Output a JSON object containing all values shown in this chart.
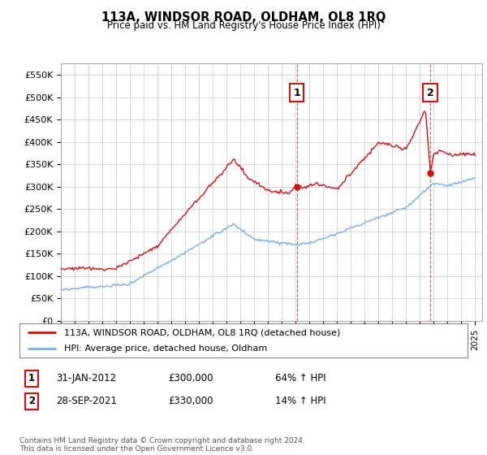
{
  "title": "113A, WINDSOR ROAD, OLDHAM, OL8 1RQ",
  "subtitle": "Price paid vs. HM Land Registry's House Price Index (HPI)",
  "ylim": [
    0,
    575000
  ],
  "yticks": [
    0,
    50000,
    100000,
    150000,
    200000,
    250000,
    300000,
    350000,
    400000,
    450000,
    500000,
    550000
  ],
  "ytick_labels": [
    "£0",
    "£50K",
    "£100K",
    "£150K",
    "£200K",
    "£250K",
    "£300K",
    "£350K",
    "£400K",
    "£450K",
    "£500K",
    "£550K"
  ],
  "hpi_color": "#7aace0",
  "price_color": "#cc1111",
  "annotation1_year": 2012.08,
  "annotation1_value": 300000,
  "annotation2_year": 2021.75,
  "annotation2_value": 330000,
  "legend_line1": "113A, WINDSOR ROAD, OLDHAM, OL8 1RQ (detached house)",
  "legend_line2": "HPI: Average price, detached house, Oldham",
  "annotation1_date": "31-JAN-2012",
  "annotation1_price": "£300,000",
  "annotation1_hpi": "64% ↑ HPI",
  "annotation2_date": "28-SEP-2021",
  "annotation2_price": "£330,000",
  "annotation2_hpi": "14% ↑ HPI",
  "footer": "Contains HM Land Registry data © Crown copyright and database right 2024.\nThis data is licensed under the Open Government Licence v3.0.",
  "background_color": "#ffffff",
  "grid_color": "#cccccc"
}
